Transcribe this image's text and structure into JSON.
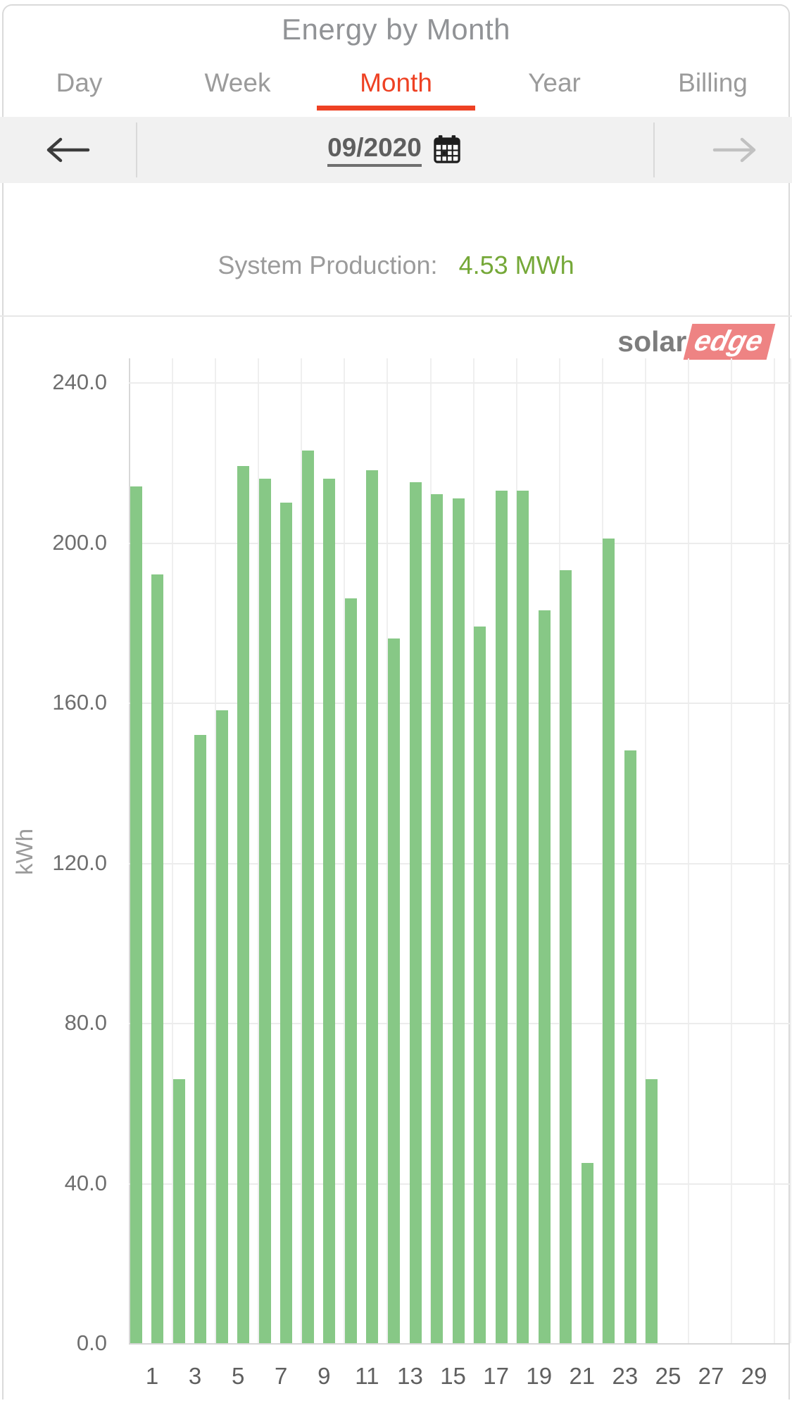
{
  "header": {
    "title": "Energy by Month"
  },
  "tabs": {
    "items": [
      {
        "label": "Day"
      },
      {
        "label": "Week"
      },
      {
        "label": "Month"
      },
      {
        "label": "Year"
      },
      {
        "label": "Billing"
      }
    ],
    "active_index": 2,
    "active_color": "#ee4123"
  },
  "date_nav": {
    "date": "09/2020",
    "prev_enabled": true,
    "next_enabled": false
  },
  "production": {
    "label": "System Production:",
    "value": "4.53 MWh",
    "value_color": "#75a838"
  },
  "logo": {
    "part1": "solar",
    "part2": "edge",
    "accent_color": "#ee8383"
  },
  "chart_data": {
    "type": "bar",
    "title": "",
    "xlabel": "",
    "ylabel": "kWh",
    "categories": [
      1,
      2,
      3,
      4,
      5,
      6,
      7,
      8,
      9,
      10,
      11,
      12,
      13,
      14,
      15,
      16,
      17,
      18,
      19,
      20,
      21,
      22,
      23,
      24,
      25,
      26,
      27,
      28,
      29,
      30
    ],
    "values": [
      214,
      192,
      66,
      152,
      158,
      219,
      216,
      210,
      223,
      216,
      186,
      218,
      176,
      215,
      212,
      211,
      179,
      213,
      213,
      183,
      193,
      45,
      201,
      148,
      66,
      null,
      null,
      null,
      null,
      null
    ],
    "x_tick_labels": [
      "1",
      "3",
      "5",
      "7",
      "9",
      "11",
      "13",
      "15",
      "17",
      "19",
      "21",
      "23",
      "25",
      "27",
      "29"
    ],
    "y_ticks": [
      0,
      40,
      80,
      120,
      160,
      200,
      240
    ],
    "y_tick_labels": [
      "0.0",
      "40.0",
      "80.0",
      "120.0",
      "160.0",
      "200.0",
      "240.0"
    ],
    "ylim": [
      0,
      246
    ],
    "bar_color": "#87c886",
    "grid": true,
    "legend": "none"
  }
}
